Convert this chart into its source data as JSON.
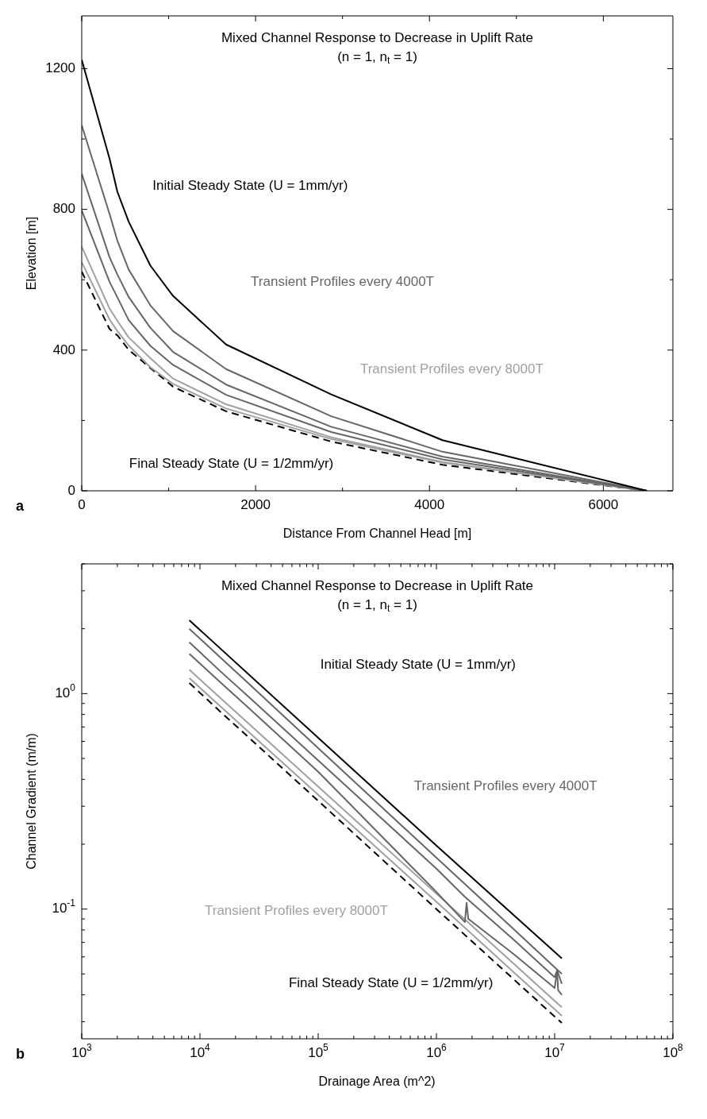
{
  "chart_data": [
    {
      "type": "line",
      "title": "Mixed Channel Response to Decrease in Uplift Rate",
      "subtitle": "(n = 1, n$_{t}$ = 1)",
      "xlabel": "Distance From Channel Head [m]",
      "ylabel": "Elevation [m]",
      "x": [
        0,
        320,
        410,
        540,
        790,
        1050,
        1660,
        2870,
        4150,
        6500
      ],
      "series": [
        {
          "color": "#000000",
          "values": [
            1225,
            944,
            850,
            765,
            640,
            554,
            416,
            274,
            144,
            0
          ]
        },
        {
          "color": "#666666",
          "values": [
            1039,
            787,
            711,
            629,
            527,
            454,
            346,
            212,
            111,
            0
          ]
        },
        {
          "color": "#666666",
          "values": [
            901,
            664,
            615,
            551,
            463,
            395,
            302,
            182,
            97,
            0
          ]
        },
        {
          "color": "#666666",
          "values": [
            797,
            594,
            550,
            485,
            412,
            358,
            273,
            167,
            89,
            0
          ]
        },
        {
          "color": "#a0a0a0",
          "values": [
            694,
            518,
            483,
            436,
            377,
            319,
            246,
            152,
            82,
            0
          ]
        },
        {
          "color": "#a0a0a0",
          "values": [
            650,
            487,
            454,
            413,
            351,
            304,
            234,
            147,
            80,
            0
          ]
        },
        {
          "color": "#000000",
          "line_style": "dashed",
          "values": [
            623,
            460,
            442,
            401,
            349,
            296,
            226,
            140,
            74,
            0
          ]
        }
      ],
      "xlim": [
        0,
        6800
      ],
      "ylim": [
        0,
        1350
      ],
      "xticks": [
        0,
        {
          "value": 1000,
          "label": null
        },
        2000,
        {
          "value": 3000,
          "label": null
        },
        4000,
        {
          "value": 5000,
          "label": null
        },
        6000
      ],
      "yticks": [
        0,
        {
          "value": 200,
          "label": null
        },
        400,
        {
          "value": 600,
          "label": null
        },
        800,
        {
          "value": 1000,
          "label": null
        },
        1200
      ],
      "annotations": [
        "Initial Steady State (U = 1mm/yr)",
        "Transient Profiles every 4000T",
        "Transient Profiles every 8000T",
        "Final Steady State (U = 1/2mm/yr)",
        "a"
      ]
    },
    {
      "type": "line",
      "title": "Mixed Channel Response to Decrease in Uplift Rate",
      "subtitle": "(n = 1, n$_{t}$ = 1)",
      "xlabel": "Drainage Area (m^2)",
      "ylabel": "Channel Gradient (m/m)",
      "log": "xy",
      "series": [
        {
          "color": "#000000",
          "x": [
            8130,
            100000,
            1000000,
            11500000
          ],
          "values": [
            2.19,
            0.624,
            0.197,
            0.059
          ]
        },
        {
          "color": "#666666",
          "x": [
            8130,
            15100,
            25100,
            100000,
            1000000,
            4470000,
            10000000,
            11500000
          ],
          "values": [
            2.0,
            1.46,
            1.13,
            0.558,
            0.173,
            0.081,
            0.0537,
            0.05
          ]
        },
        {
          "color": "#666666",
          "x": [
            8130,
            15100,
            25100,
            100000,
            1000000,
            1740000,
            4470000,
            10000000,
            10500000,
            11500000
          ],
          "values": [
            1.73,
            1.26,
            0.98,
            0.49,
            0.154,
            0.114,
            0.0724,
            0.0483,
            0.052,
            0.045
          ]
        },
        {
          "color": "#666666",
          "x": [
            8130,
            15100,
            25100,
            100000,
            1000000,
            1740000,
            1800000,
            1860000,
            4470000,
            10000000,
            10500000,
            10700000,
            11500000
          ],
          "values": [
            1.53,
            1.12,
            0.87,
            0.434,
            0.12,
            0.087,
            0.107,
            0.09,
            0.062,
            0.043,
            0.052,
            0.042,
            0.04
          ]
        },
        {
          "color": "#a0a0a0",
          "x": [
            8130,
            15100,
            25100,
            100000,
            1000000,
            4470000,
            10000000,
            11500000
          ],
          "values": [
            1.29,
            0.948,
            0.736,
            0.37,
            0.118,
            0.056,
            0.0375,
            0.035
          ]
        },
        {
          "color": "#a0a0a0",
          "x": [
            8130,
            15100,
            25100,
            100000,
            1000000,
            4470000,
            10000000,
            11500000
          ],
          "values": [
            1.18,
            0.867,
            0.673,
            0.339,
            0.108,
            0.0511,
            0.0343,
            0.032
          ]
        },
        {
          "color": "#000000",
          "line_style": "dashed",
          "x": [
            8130,
            15100,
            25100,
            100000,
            1000000,
            4470000,
            10000000,
            11500000
          ],
          "values": [
            1.12,
            0.818,
            0.635,
            0.318,
            0.1,
            0.0474,
            0.0317,
            0.0296
          ]
        }
      ],
      "xlim": [
        1000,
        100000000
      ],
      "ylim": [
        0.025,
        4
      ],
      "xticks": [
        {
          "value": 1000,
          "label": "10$^{3}$"
        },
        {
          "value": 2000,
          "label": null
        },
        {
          "value": 3000,
          "label": null
        },
        {
          "value": 4000,
          "label": null
        },
        {
          "value": 5000,
          "label": null
        },
        {
          "value": 6000,
          "label": null
        },
        {
          "value": 7000,
          "label": null
        },
        {
          "value": 8000,
          "label": null
        },
        {
          "value": 9000,
          "label": null
        },
        {
          "value": 10000,
          "label": "10$^{4}$"
        },
        {
          "value": 20000,
          "label": null
        },
        {
          "value": 30000,
          "label": null
        },
        {
          "value": 40000,
          "label": null
        },
        {
          "value": 50000,
          "label": null
        },
        {
          "value": 60000,
          "label": null
        },
        {
          "value": 70000,
          "label": null
        },
        {
          "value": 80000,
          "label": null
        },
        {
          "value": 90000,
          "label": null
        },
        {
          "value": 100000,
          "label": "10$^{5}$"
        },
        {
          "value": 200000,
          "label": null
        },
        {
          "value": 300000,
          "label": null
        },
        {
          "value": 400000,
          "label": null
        },
        {
          "value": 500000,
          "label": null
        },
        {
          "value": 600000,
          "label": null
        },
        {
          "value": 700000,
          "label": null
        },
        {
          "value": 800000,
          "label": null
        },
        {
          "value": 900000,
          "label": null
        },
        {
          "value": 1000000,
          "label": "10$^{6}$"
        },
        {
          "value": 2000000,
          "label": null
        },
        {
          "value": 3000000,
          "label": null
        },
        {
          "value": 4000000,
          "label": null
        },
        {
          "value": 5000000,
          "label": null
        },
        {
          "value": 6000000,
          "label": null
        },
        {
          "value": 7000000,
          "label": null
        },
        {
          "value": 8000000,
          "label": null
        },
        {
          "value": 9000000,
          "label": null
        },
        {
          "value": 10000000,
          "label": "10$^{7}$"
        },
        {
          "value": 20000000,
          "label": null
        },
        {
          "value": 30000000,
          "label": null
        },
        {
          "value": 40000000,
          "label": null
        },
        {
          "value": 50000000,
          "label": null
        },
        {
          "value": 60000000,
          "label": null
        },
        {
          "value": 70000000,
          "label": null
        },
        {
          "value": 80000000,
          "label": null
        },
        {
          "value": 90000000,
          "label": null
        },
        {
          "value": 100000000,
          "label": "10$^{8}$"
        }
      ],
      "yticks": [
        {
          "value": 0.03,
          "label": null
        },
        {
          "value": 0.04,
          "label": null
        },
        {
          "value": 0.05,
          "label": null
        },
        {
          "value": 0.06,
          "label": null
        },
        {
          "value": 0.07,
          "label": null
        },
        {
          "value": 0.08,
          "label": null
        },
        {
          "value": 0.09,
          "label": null
        },
        {
          "value": 0.1,
          "label": "10$^{-1}$"
        },
        {
          "value": 0.2,
          "label": null
        },
        {
          "value": 0.3,
          "label": null
        },
        {
          "value": 0.4,
          "label": null
        },
        {
          "value": 0.5,
          "label": null
        },
        {
          "value": 0.6,
          "label": null
        },
        {
          "value": 0.7,
          "label": null
        },
        {
          "value": 0.8,
          "label": null
        },
        {
          "value": 0.9,
          "label": null
        },
        {
          "value": 1,
          "label": "10$^{0}$"
        },
        {
          "value": 2,
          "label": null
        },
        {
          "value": 3,
          "label": null
        },
        {
          "value": 4,
          "label": null
        }
      ],
      "annotations": [
        "Initial Steady State (U = 1mm/yr)",
        "Transient Profiles every 4000T",
        "Transient Profiles every 8000T",
        "Final Steady State (U = 1/2mm/yr)",
        "b"
      ]
    }
  ]
}
